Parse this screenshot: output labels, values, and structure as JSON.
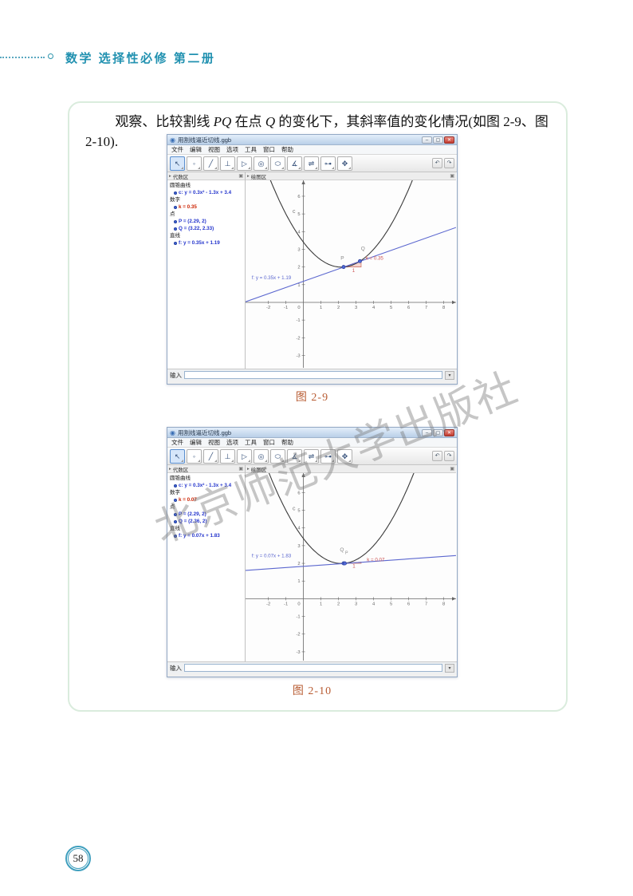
{
  "header": {
    "title": "数学 选择性必修 第二册"
  },
  "paragraph": {
    "seg1": "观察、比较割线 ",
    "seg2": "PQ",
    "seg3": " 在点 ",
    "seg4": "Q",
    "seg5": " 的变化下，其斜率值的变化情况(如图 2-9、图 2-10)."
  },
  "watermark": "北京师范大学出版社",
  "footer": {
    "page_number": "58"
  },
  "geogebra": {
    "window_title": "用割线逼近切线.ggb",
    "menu": [
      "文件",
      "编辑",
      "视图",
      "选项",
      "工具",
      "窗口",
      "帮助"
    ],
    "toolbar_icons": [
      "↖",
      "◦",
      "╱",
      "⊥",
      "▷",
      "◎",
      "⬭",
      "∡",
      "⇌",
      "⊶",
      "✥"
    ],
    "window_buttons": {
      "minimize": "–",
      "maximize": "▢",
      "close": "✕"
    },
    "undo_icon": "↶",
    "redo_icon": "↷",
    "panel_collapse_icon": "▸",
    "panel_icon": "▣",
    "algebra_header": "代数区",
    "graphics_header": "绘图区",
    "input_label": "输入",
    "input_button_icon": "▾",
    "logo_icon": "◉"
  },
  "windows": [
    {
      "caption": "图 2-9",
      "algebra": {
        "groups": [
          {
            "label": "圆锥曲线",
            "items": [
              "c: y = 0.3x² - 1.3x + 3.4"
            ]
          },
          {
            "label": "数字",
            "items": [
              "k = 0.35"
            ]
          },
          {
            "label": "点",
            "items": [
              "P = (2.29, 2)",
              "Q = (3.22, 2.33)"
            ]
          },
          {
            "label": "直线",
            "items": [
              "f: y = 0.35x + 1.19"
            ]
          }
        ]
      }
    },
    {
      "caption": "图 2-10",
      "algebra": {
        "groups": [
          {
            "label": "圆锥曲线",
            "items": [
              "c: y = 0.3x² - 1.3x + 3.4"
            ]
          },
          {
            "label": "数字",
            "items": [
              "k = 0.07"
            ]
          },
          {
            "label": "点",
            "items": [
              "P = (2.29, 2)",
              "Q = (2.36, 2)"
            ]
          },
          {
            "label": "直线",
            "items": [
              "f: y = 0.07x + 1.83"
            ]
          }
        ]
      }
    }
  ],
  "chart_data": [
    {
      "type": "line",
      "title": "图 2-9",
      "curve": {
        "name": "c",
        "a": 0.3,
        "b": -1.3,
        "c": 3.4,
        "eq": "y = 0.3x² - 1.3x + 3.4"
      },
      "secant": {
        "name": "f",
        "slope": 0.35,
        "intercept": 1.19,
        "eq": "f: y = 0.35x + 1.19"
      },
      "points": [
        {
          "name": "P",
          "x": 2.29,
          "y": 2
        },
        {
          "name": "Q",
          "x": 3.22,
          "y": 2.33
        }
      ],
      "slope_triangle": {
        "run": 1,
        "rise": 0.35,
        "run_label": "1",
        "k_label": "k = 0.35"
      },
      "xrange": [
        -3.3,
        8.7
      ],
      "yrange": [
        -3.7,
        6.9
      ],
      "x_ticks": [
        -2,
        -1,
        1,
        2,
        3,
        4,
        5,
        6,
        7,
        8
      ],
      "y_ticks": [
        -3,
        -2,
        -1,
        1,
        2,
        3,
        4,
        5,
        6
      ],
      "grid": false,
      "colors": {
        "curve": "#3a3a3a",
        "line": "#5b67cf",
        "point_fill": "#4f68d6",
        "point_stroke": "#2c3f99",
        "triangle_fill": "rgba(236,164,152,0.45)",
        "triangle_stroke": "#c96a5a",
        "axis": "#666666"
      },
      "labels": [
        {
          "text": "c",
          "x": -0.62,
          "y": 5.05,
          "color": "#777777",
          "size": 7
        },
        {
          "text": "f: y = 0.35x + 1.19",
          "x": -2.95,
          "y": 1.3,
          "color": "#5b67cf",
          "size": 6.2
        },
        {
          "text": "P",
          "x": 2.12,
          "y": 2.42,
          "color": "#888888",
          "size": 6.5
        },
        {
          "text": "Q",
          "x": 3.28,
          "y": 2.95,
          "color": "#888888",
          "size": 6.5
        },
        {
          "text": "1",
          "x": 2.78,
          "y": 1.72,
          "color": "#cc5555",
          "size": 6.2
        },
        {
          "text": "k = 0.35",
          "x": 3.55,
          "y": 2.42,
          "color": "#cc5555",
          "size": 6.2
        }
      ]
    },
    {
      "type": "line",
      "title": "图 2-10",
      "curve": {
        "name": "c",
        "a": 0.3,
        "b": -1.3,
        "c": 3.4,
        "eq": "y = 0.3x² - 1.3x + 3.4"
      },
      "secant": {
        "name": "f",
        "slope": 0.07,
        "intercept": 1.83,
        "eq": "f: y = 0.07x + 1.83"
      },
      "points": [
        {
          "name": "P",
          "x": 2.29,
          "y": 2
        },
        {
          "name": "Q",
          "x": 2.36,
          "y": 2
        }
      ],
      "slope_triangle": {
        "run": 1,
        "rise": 0.07,
        "run_label": "1",
        "k_label": "k = 0.07"
      },
      "xrange": [
        -3.3,
        8.7
      ],
      "yrange": [
        -3.5,
        7.1
      ],
      "x_ticks": [
        -2,
        -1,
        1,
        2,
        3,
        4,
        5,
        6,
        7,
        8
      ],
      "y_ticks": [
        -3,
        -2,
        -1,
        1,
        2,
        3,
        4,
        5,
        6
      ],
      "grid": false,
      "colors": {
        "curve": "#3a3a3a",
        "line": "#5b67cf",
        "point_fill": "#4f68d6",
        "point_stroke": "#2c3f99",
        "triangle_fill": "rgba(236,164,152,0.45)",
        "triangle_stroke": "#c96a5a",
        "axis": "#666666"
      },
      "labels": [
        {
          "text": "c",
          "x": -0.62,
          "y": 5.0,
          "color": "#777777",
          "size": 7
        },
        {
          "text": "f: y = 0.07x + 1.83",
          "x": -2.95,
          "y": 2.35,
          "color": "#5b67cf",
          "size": 6.2
        },
        {
          "text": "Q",
          "x": 2.08,
          "y": 2.68,
          "color": "#888888",
          "size": 6.5
        },
        {
          "text": "P",
          "x": 2.38,
          "y": 2.52,
          "color": "#888888",
          "size": 5.3
        },
        {
          "text": "1",
          "x": 2.8,
          "y": 1.75,
          "color": "#cc5555",
          "size": 6.2
        },
        {
          "text": "k = 0.07",
          "x": 3.62,
          "y": 2.12,
          "color": "#cc5555",
          "size": 6.2
        }
      ]
    }
  ]
}
